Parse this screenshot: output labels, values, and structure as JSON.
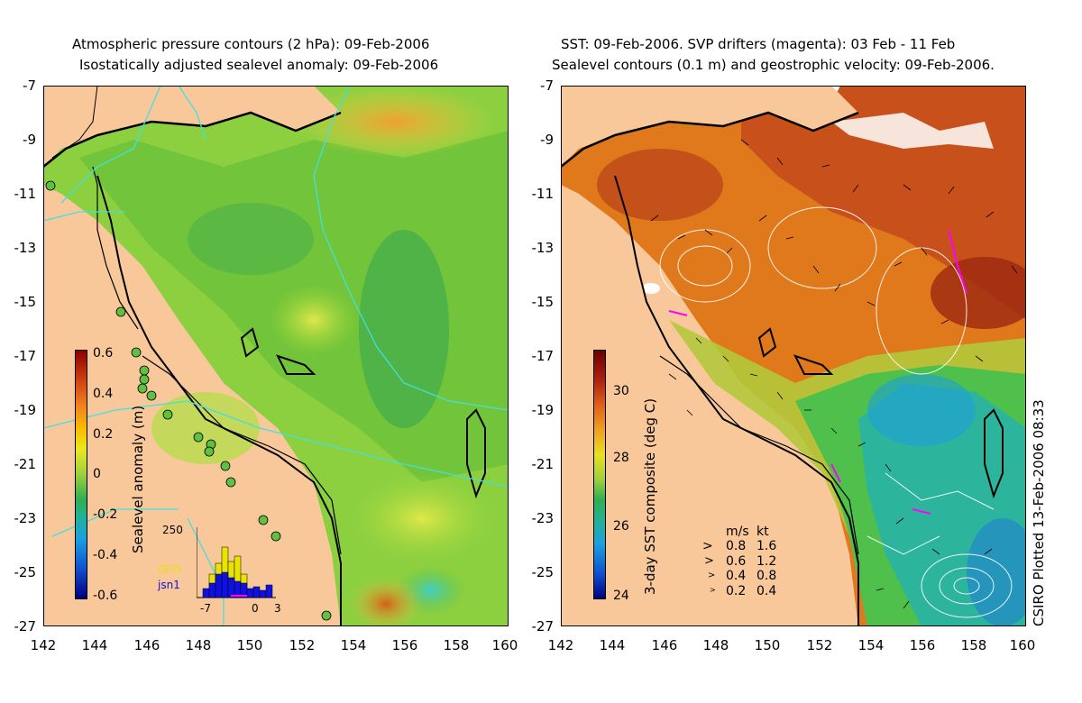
{
  "left_panel": {
    "title_line1": "Atmospheric pressure contours (2 hPa): 09-Feb-2006",
    "title_line2": "Isostatically adjusted sealevel anomaly: 09-Feb-2006",
    "colorbar_label": "Sealevel anomaly (m)",
    "colorbar_ticks": [
      "0.6",
      "0.4",
      "0.2",
      "0",
      "-0.2",
      "-0.4",
      "-0.6"
    ],
    "inset": {
      "ymax_label": "250",
      "series1": "GFO",
      "series2": "jsn1",
      "x_ticks": [
        "-7",
        "0",
        "3"
      ],
      "series1_color": "#e8e400",
      "series2_color": "#1010e0"
    }
  },
  "right_panel": {
    "title_line1": "SST: 09-Feb-2006. SVP drifters (magenta): 03 Feb - 11 Feb",
    "title_line2": "Sealevel contours (0.1 m) and geostrophic velocity: 09-Feb-2006.",
    "colorbar_label": "3-day SST composite (deg C)",
    "colorbar_ticks": [
      "30",
      "28",
      "26",
      "24"
    ],
    "legend": {
      "header_ms": "m/s",
      "header_kt": "kt",
      "rows": [
        {
          "ms": "0.8",
          "kt": "1.6"
        },
        {
          "ms": "0.6",
          "kt": "1.2"
        },
        {
          "ms": "0.4",
          "kt": "0.8"
        },
        {
          "ms": "0.2",
          "kt": "0.4"
        }
      ]
    },
    "credit": "CSIRO Plotted 13-Feb-2006 08:33"
  },
  "axes": {
    "x_ticks": [
      "142",
      "144",
      "146",
      "148",
      "150",
      "152",
      "154",
      "156",
      "158",
      "160"
    ],
    "y_ticks": [
      "-7",
      "-9",
      "-11",
      "-13",
      "-15",
      "-17",
      "-19",
      "-21",
      "-23",
      "-25",
      "-27"
    ],
    "lon_range": [
      142,
      160
    ],
    "lat_range": [
      -27,
      -7
    ]
  },
  "colors": {
    "land": "#f8c89b",
    "coast_cyan": "#40e0e0",
    "drifter_magenta": "#ff00ff"
  }
}
